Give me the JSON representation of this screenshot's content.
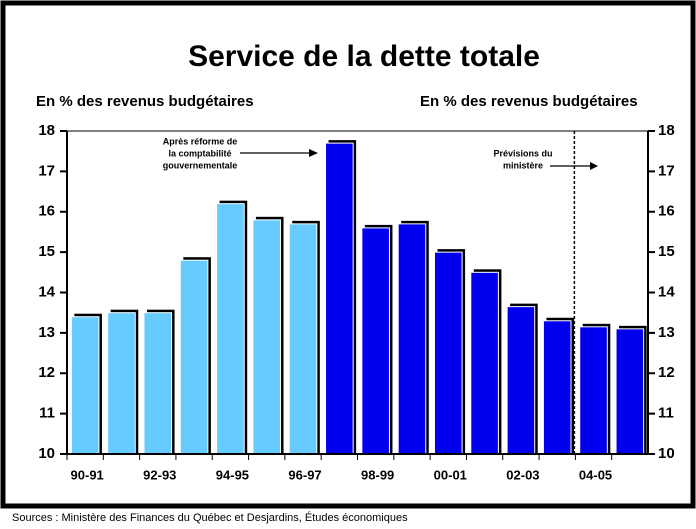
{
  "chart_data": {
    "type": "bar",
    "title": "Service de la dette totale",
    "y_label": "En % des revenus budgétaires",
    "y2_label": "En % des revenus budgétaires",
    "categories": [
      "90-91",
      null,
      "92-93",
      null,
      "94-95",
      null,
      "96-97",
      null,
      "98-99",
      null,
      "00-01",
      null,
      "02-03",
      null,
      "04-05",
      null
    ],
    "values": [
      13.4,
      13.5,
      13.5,
      14.8,
      16.2,
      15.8,
      15.7,
      17.7,
      15.6,
      15.7,
      15.0,
      14.5,
      13.65,
      13.3,
      13.15,
      13.1
    ],
    "colors": [
      "#66ccff",
      "#66ccff",
      "#66ccff",
      "#66ccff",
      "#66ccff",
      "#66ccff",
      "#66ccff",
      "#0000ee",
      "#0000ee",
      "#0000ee",
      "#0000ee",
      "#0000ee",
      "#0000ee",
      "#0000ee",
      "#0000ee",
      "#0000ee"
    ],
    "ylim": [
      10,
      18
    ],
    "yticks": [
      10,
      11,
      12,
      13,
      14,
      15,
      16,
      17,
      18
    ],
    "y2lim": [
      10,
      18
    ],
    "y2ticks": [
      10,
      11,
      12,
      13,
      14,
      15,
      16,
      17,
      18
    ],
    "annotations": [
      {
        "lines": [
          "Après réforme de",
          "la comptabilité",
          "gouvernementale"
        ]
      },
      {
        "lines": [
          "Prévisions du",
          "ministère"
        ]
      }
    ],
    "source": "Sources : Ministère des Finances du Québec et Desjardins, Études économiques"
  }
}
